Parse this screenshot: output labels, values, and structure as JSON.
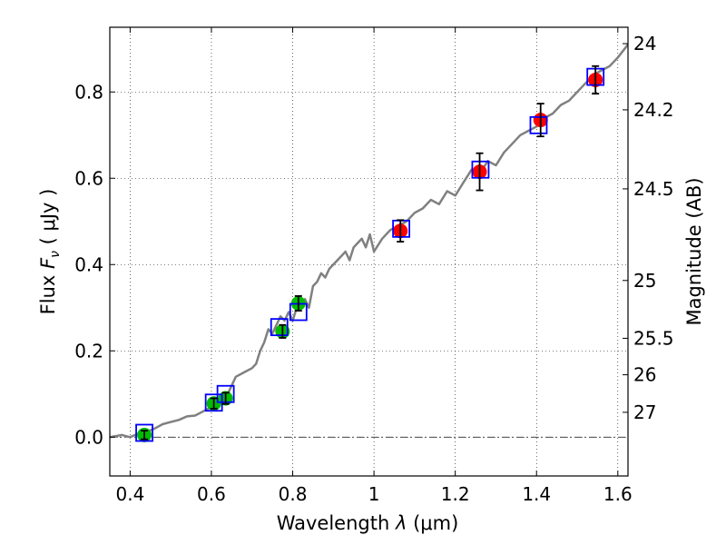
{
  "chart_data": {
    "type": "scatter",
    "xlabel_prefix": "Wavelength  ",
    "xlabel_symbol": "λ",
    "xlabel_unit": " (μm)",
    "ylabel_prefix": "Flux  ",
    "ylabel_symbol": "F",
    "ylabel_sub": "ν",
    "ylabel_unit": "  ( μJy )",
    "y2label": "Magnitude (AB)",
    "xlim": [
      0.35,
      1.625
    ],
    "ylim": [
      -0.09,
      0.95
    ],
    "grid": true,
    "x_ticks": [
      {
        "value": 0.4,
        "label": "0.4"
      },
      {
        "value": 0.6,
        "label": "0.6"
      },
      {
        "value": 0.8,
        "label": "0.8"
      },
      {
        "value": 1.0,
        "label": "1"
      },
      {
        "value": 1.2,
        "label": "1.2"
      },
      {
        "value": 1.4,
        "label": "1.4"
      },
      {
        "value": 1.6,
        "label": "1.6"
      }
    ],
    "y_ticks": [
      {
        "value": 0.0,
        "label": "0.0"
      },
      {
        "value": 0.2,
        "label": "0.2"
      },
      {
        "value": 0.4,
        "label": "0.4"
      },
      {
        "value": 0.6,
        "label": "0.6"
      },
      {
        "value": 0.8,
        "label": "0.8"
      }
    ],
    "magnitude_ticks": [
      {
        "mag": 24,
        "label": "24"
      },
      {
        "mag": 24.2,
        "label": "24.2"
      },
      {
        "mag": 24.5,
        "label": "24.5"
      },
      {
        "mag": 25,
        "label": "25"
      },
      {
        "mag": 25.5,
        "label": "25.5"
      },
      {
        "mag": 26,
        "label": "26"
      },
      {
        "mag": 27,
        "label": "27"
      }
    ],
    "model_spectrum": {
      "color": "#808080",
      "x": [
        0.35,
        0.38,
        0.4,
        0.42,
        0.44,
        0.46,
        0.48,
        0.5,
        0.52,
        0.54,
        0.56,
        0.58,
        0.6,
        0.62,
        0.64,
        0.65,
        0.66,
        0.68,
        0.7,
        0.71,
        0.72,
        0.73,
        0.74,
        0.75,
        0.76,
        0.77,
        0.78,
        0.79,
        0.8,
        0.81,
        0.82,
        0.83,
        0.84,
        0.85,
        0.86,
        0.87,
        0.88,
        0.89,
        0.9,
        0.91,
        0.92,
        0.93,
        0.94,
        0.95,
        0.96,
        0.97,
        0.98,
        0.99,
        1.0,
        1.02,
        1.04,
        1.06,
        1.08,
        1.1,
        1.12,
        1.14,
        1.16,
        1.18,
        1.2,
        1.22,
        1.24,
        1.26,
        1.28,
        1.3,
        1.32,
        1.34,
        1.36,
        1.38,
        1.4,
        1.42,
        1.44,
        1.46,
        1.48,
        1.5,
        1.52,
        1.54,
        1.56,
        1.58,
        1.6,
        1.625
      ],
      "y": [
        0.0,
        0.005,
        0.0,
        0.008,
        0.012,
        0.02,
        0.03,
        0.035,
        0.04,
        0.048,
        0.05,
        0.06,
        0.07,
        0.085,
        0.1,
        0.12,
        0.14,
        0.15,
        0.16,
        0.17,
        0.2,
        0.22,
        0.25,
        0.24,
        0.26,
        0.28,
        0.27,
        0.29,
        0.27,
        0.3,
        0.31,
        0.32,
        0.3,
        0.35,
        0.36,
        0.38,
        0.37,
        0.39,
        0.4,
        0.41,
        0.42,
        0.43,
        0.41,
        0.44,
        0.45,
        0.46,
        0.44,
        0.47,
        0.43,
        0.46,
        0.48,
        0.49,
        0.5,
        0.52,
        0.53,
        0.55,
        0.54,
        0.57,
        0.56,
        0.59,
        0.62,
        0.61,
        0.64,
        0.63,
        0.66,
        0.68,
        0.7,
        0.71,
        0.72,
        0.74,
        0.75,
        0.77,
        0.78,
        0.8,
        0.82,
        0.84,
        0.85,
        0.86,
        0.88,
        0.91
      ]
    },
    "series": [
      {
        "name": "observed-blue-bands",
        "color": "#00bb00",
        "points": [
          {
            "x": 0.435,
            "y": 0.005,
            "err": 0.01
          },
          {
            "x": 0.606,
            "y": 0.078,
            "err": 0.012
          },
          {
            "x": 0.635,
            "y": 0.09,
            "err": 0.013
          },
          {
            "x": 0.775,
            "y": 0.245,
            "err": 0.015
          },
          {
            "x": 0.814,
            "y": 0.31,
            "err": 0.017
          }
        ]
      },
      {
        "name": "observed-red-bands",
        "color": "#ff0000",
        "points": [
          {
            "x": 1.065,
            "y": 0.478,
            "err": 0.025
          },
          {
            "x": 1.26,
            "y": 0.615,
            "err": 0.043
          },
          {
            "x": 1.41,
            "y": 0.735,
            "err": 0.038
          },
          {
            "x": 1.545,
            "y": 0.828,
            "err": 0.032
          }
        ]
      },
      {
        "name": "model-photometry",
        "color": "#0000ff",
        "points": [
          {
            "x": 0.435,
            "y": 0.01
          },
          {
            "x": 0.606,
            "y": 0.08
          },
          {
            "x": 0.635,
            "y": 0.1
          },
          {
            "x": 0.767,
            "y": 0.255
          },
          {
            "x": 0.814,
            "y": 0.29
          },
          {
            "x": 1.067,
            "y": 0.483
          },
          {
            "x": 1.262,
            "y": 0.62
          },
          {
            "x": 1.405,
            "y": 0.723
          },
          {
            "x": 1.545,
            "y": 0.835
          }
        ]
      }
    ]
  }
}
